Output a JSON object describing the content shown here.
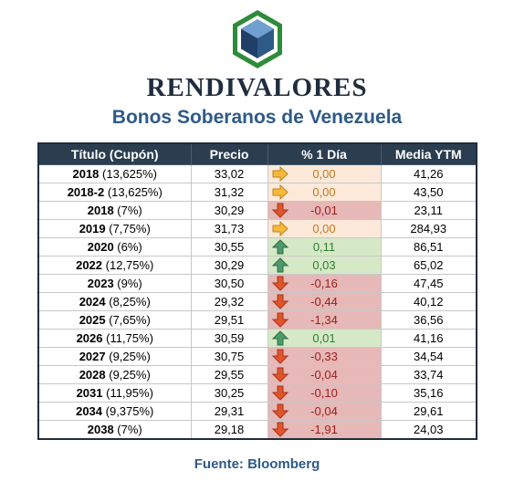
{
  "brand": "RENDIVALORES",
  "title": "Bonos Soberanos de Venezuela",
  "source": "Fuente: Bloomberg",
  "colors": {
    "brand_green": "#2e8b3a",
    "cube_blue": "#2e5a88",
    "header_bg": "#2b3e50",
    "flat": "#fde9d9",
    "up": "#d6e9c6",
    "down": "#e6b8b7"
  },
  "table": {
    "headers": {
      "titulo": "Título (Cupón)",
      "precio": "Precio",
      "cambio": "% 1 Día",
      "ytm": "Media YTM"
    },
    "rows": [
      {
        "year": "2018",
        "coupon": "(13,625%)",
        "precio": "33,02",
        "cambio": "0,00",
        "trend": "flat",
        "icon": "arrow-right-icon",
        "ytm": "41,26"
      },
      {
        "year": "2018-2",
        "coupon": "(13,625%)",
        "precio": "31,32",
        "cambio": "0,00",
        "trend": "flat",
        "icon": "arrow-right-icon",
        "ytm": "43,50"
      },
      {
        "year": "2018",
        "coupon": "(7%)",
        "precio": "30,29",
        "cambio": "-0,01",
        "trend": "down",
        "icon": "arrow-down-icon",
        "ytm": "23,11"
      },
      {
        "year": "2019",
        "coupon": "(7,75%)",
        "precio": "31,73",
        "cambio": "0,00",
        "trend": "flat",
        "icon": "arrow-right-icon",
        "ytm": "284,93"
      },
      {
        "year": "2020",
        "coupon": "(6%)",
        "precio": "30,55",
        "cambio": "0,11",
        "trend": "up",
        "icon": "arrow-up-icon",
        "ytm": "86,51"
      },
      {
        "year": "2022",
        "coupon": "(12,75%)",
        "precio": "30,29",
        "cambio": "0,03",
        "trend": "up",
        "icon": "arrow-up-icon",
        "ytm": "65,02"
      },
      {
        "year": "2023",
        "coupon": "(9%)",
        "precio": "30,50",
        "cambio": "-0,16",
        "trend": "down",
        "icon": "arrow-down-icon",
        "ytm": "47,45"
      },
      {
        "year": "2024",
        "coupon": "(8,25%)",
        "precio": "29,32",
        "cambio": "-0,44",
        "trend": "down",
        "icon": "arrow-down-icon",
        "ytm": "40,12"
      },
      {
        "year": "2025",
        "coupon": "(7,65%)",
        "precio": "29,51",
        "cambio": "-1,34",
        "trend": "down",
        "icon": "arrow-down-icon",
        "ytm": "36,56"
      },
      {
        "year": "2026",
        "coupon": "(11,75%)",
        "precio": "30,59",
        "cambio": "0,01",
        "trend": "up",
        "icon": "arrow-up-icon",
        "ytm": "41,16"
      },
      {
        "year": "2027",
        "coupon": "(9,25%)",
        "precio": "30,75",
        "cambio": "-0,33",
        "trend": "down",
        "icon": "arrow-down-icon",
        "ytm": "34,54"
      },
      {
        "year": "2028",
        "coupon": "(9,25%)",
        "precio": "29,55",
        "cambio": "-0,04",
        "trend": "down",
        "icon": "arrow-down-icon",
        "ytm": "33,74"
      },
      {
        "year": "2031",
        "coupon": "(11,95%)",
        "precio": "30,25",
        "cambio": "-0,10",
        "trend": "down",
        "icon": "arrow-down-icon",
        "ytm": "35,16"
      },
      {
        "year": "2034",
        "coupon": "(9,375%)",
        "precio": "29,31",
        "cambio": "-0,04",
        "trend": "down",
        "icon": "arrow-down-icon",
        "ytm": "29,61"
      },
      {
        "year": "2038",
        "coupon": "(7%)",
        "precio": "29,18",
        "cambio": "-1,91",
        "trend": "down",
        "icon": "arrow-down-icon",
        "ytm": "24,03"
      }
    ]
  }
}
